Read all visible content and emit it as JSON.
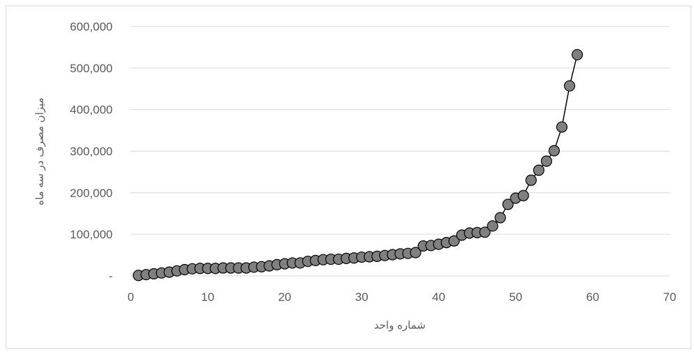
{
  "chart_data": {
    "type": "scatter",
    "title": "",
    "xlabel": "شماره واحد",
    "ylabel": "میزان مصرف در سه ماه",
    "xlim": [
      0,
      70
    ],
    "ylim": [
      0,
      600000
    ],
    "x_ticks": [
      0,
      10,
      20,
      30,
      40,
      50,
      60,
      70
    ],
    "x_tick_labels": [
      "0",
      "10",
      "20",
      "30",
      "40",
      "50",
      "60",
      "70"
    ],
    "y_ticks": [
      0,
      100000,
      200000,
      300000,
      400000,
      500000,
      600000
    ],
    "y_tick_labels": [
      "-",
      "100,000",
      "200,000",
      "300,000",
      "400,000",
      "500,000",
      "600,000"
    ],
    "grid": "horizontal",
    "legend": "none",
    "marker_color": "#808080",
    "line_color": "#000000",
    "series": [
      {
        "x": [
          1,
          2,
          3,
          4,
          5,
          6,
          7,
          8,
          9,
          10,
          11,
          12,
          13,
          14,
          15,
          16,
          17,
          18,
          19,
          20,
          21,
          22,
          23,
          24,
          25,
          26,
          27,
          28,
          29,
          30,
          31,
          32,
          33,
          34,
          35,
          36,
          37,
          38,
          39,
          40,
          41,
          42,
          43,
          44,
          45,
          46,
          47,
          48,
          49,
          50,
          51,
          52,
          53,
          54,
          55,
          56,
          57,
          58
        ],
        "y": [
          1000,
          3000,
          5000,
          7000,
          9000,
          12000,
          15000,
          17000,
          18000,
          18000,
          18000,
          19000,
          19000,
          19000,
          19000,
          21000,
          22000,
          24000,
          27000,
          29000,
          31000,
          31000,
          35000,
          37000,
          39000,
          40000,
          40000,
          42000,
          43000,
          45000,
          46000,
          47000,
          49000,
          51000,
          53000,
          54000,
          56000,
          72000,
          73000,
          76000,
          80000,
          84000,
          98000,
          103000,
          104000,
          105000,
          120000,
          140000,
          172000,
          187000,
          193000,
          230000,
          254000,
          276000,
          301000,
          358000,
          457000,
          532000
        ]
      }
    ]
  }
}
